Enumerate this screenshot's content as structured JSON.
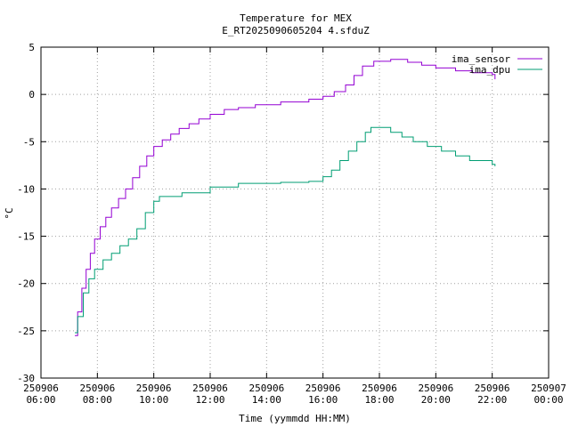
{
  "chart_data": {
    "type": "line",
    "title": "Temperature for MEX",
    "subtitle": "E_RT2025090605204 4.sfduZ",
    "xlabel": "Time (yymmdd HH:MM)",
    "ylabel": "°C",
    "xlim": [
      "250906 06:00",
      "250907 00:00"
    ],
    "ylim": [
      -30,
      5
    ],
    "grid": true,
    "legend": "top-right",
    "x_ticks": [
      {
        "date": "250906",
        "time": "06:00",
        "hour": 6
      },
      {
        "date": "250906",
        "time": "08:00",
        "hour": 8
      },
      {
        "date": "250906",
        "time": "10:00",
        "hour": 10
      },
      {
        "date": "250906",
        "time": "12:00",
        "hour": 12
      },
      {
        "date": "250906",
        "time": "14:00",
        "hour": 14
      },
      {
        "date": "250906",
        "time": "16:00",
        "hour": 16
      },
      {
        "date": "250906",
        "time": "18:00",
        "hour": 18
      },
      {
        "date": "250906",
        "time": "20:00",
        "hour": 20
      },
      {
        "date": "250906",
        "time": "22:00",
        "hour": 22
      },
      {
        "date": "250907",
        "time": "00:00",
        "hour": 24
      }
    ],
    "y_ticks": [
      5,
      0,
      -5,
      -10,
      -15,
      -20,
      -25,
      -30
    ],
    "series": [
      {
        "name": "ima_sensor",
        "color": "#9400d3",
        "points": [
          [
            7.2,
            -25.5
          ],
          [
            7.3,
            -23.0
          ],
          [
            7.45,
            -20.5
          ],
          [
            7.6,
            -18.5
          ],
          [
            7.75,
            -16.8
          ],
          [
            7.9,
            -15.3
          ],
          [
            8.1,
            -14.0
          ],
          [
            8.3,
            -13.0
          ],
          [
            8.5,
            -12.0
          ],
          [
            8.75,
            -11.0
          ],
          [
            9.0,
            -10.0
          ],
          [
            9.25,
            -8.8
          ],
          [
            9.5,
            -7.6
          ],
          [
            9.75,
            -6.5
          ],
          [
            10.0,
            -5.5
          ],
          [
            10.3,
            -4.8
          ],
          [
            10.6,
            -4.2
          ],
          [
            10.9,
            -3.6
          ],
          [
            11.25,
            -3.1
          ],
          [
            11.6,
            -2.6
          ],
          [
            12.0,
            -2.1
          ],
          [
            12.5,
            -1.6
          ],
          [
            13.0,
            -1.4
          ],
          [
            13.6,
            -1.1
          ],
          [
            14.5,
            -0.8
          ],
          [
            15.5,
            -0.5
          ],
          [
            16.0,
            -0.2
          ],
          [
            16.4,
            0.3
          ],
          [
            16.8,
            1.0
          ],
          [
            17.1,
            2.0
          ],
          [
            17.4,
            3.0
          ],
          [
            17.8,
            3.5
          ],
          [
            18.4,
            3.7
          ],
          [
            19.0,
            3.4
          ],
          [
            19.5,
            3.1
          ],
          [
            20.0,
            2.8
          ],
          [
            20.7,
            2.5
          ],
          [
            21.3,
            2.3
          ],
          [
            22.0,
            2.1
          ],
          [
            22.1,
            1.6
          ]
        ]
      },
      {
        "name": "ima_dpu",
        "color": "#009e73",
        "points": [
          [
            7.2,
            -25.2
          ],
          [
            7.3,
            -23.5
          ],
          [
            7.5,
            -21.0
          ],
          [
            7.7,
            -19.5
          ],
          [
            7.9,
            -18.5
          ],
          [
            8.2,
            -17.5
          ],
          [
            8.5,
            -16.8
          ],
          [
            8.8,
            -16.0
          ],
          [
            9.1,
            -15.3
          ],
          [
            9.4,
            -14.2
          ],
          [
            9.7,
            -12.5
          ],
          [
            10.0,
            -11.3
          ],
          [
            10.2,
            -10.8
          ],
          [
            11.0,
            -10.4
          ],
          [
            12.0,
            -9.8
          ],
          [
            13.0,
            -9.4
          ],
          [
            14.5,
            -9.3
          ],
          [
            15.5,
            -9.2
          ],
          [
            16.0,
            -8.7
          ],
          [
            16.3,
            -8.0
          ],
          [
            16.6,
            -7.0
          ],
          [
            16.9,
            -6.0
          ],
          [
            17.2,
            -5.0
          ],
          [
            17.5,
            -4.0
          ],
          [
            17.7,
            -3.5
          ],
          [
            18.1,
            -3.5
          ],
          [
            18.4,
            -4.0
          ],
          [
            18.8,
            -4.5
          ],
          [
            19.2,
            -5.0
          ],
          [
            19.7,
            -5.5
          ],
          [
            20.2,
            -6.0
          ],
          [
            20.7,
            -6.5
          ],
          [
            21.2,
            -7.0
          ],
          [
            22.0,
            -7.4
          ],
          [
            22.1,
            -7.6
          ]
        ]
      }
    ]
  }
}
